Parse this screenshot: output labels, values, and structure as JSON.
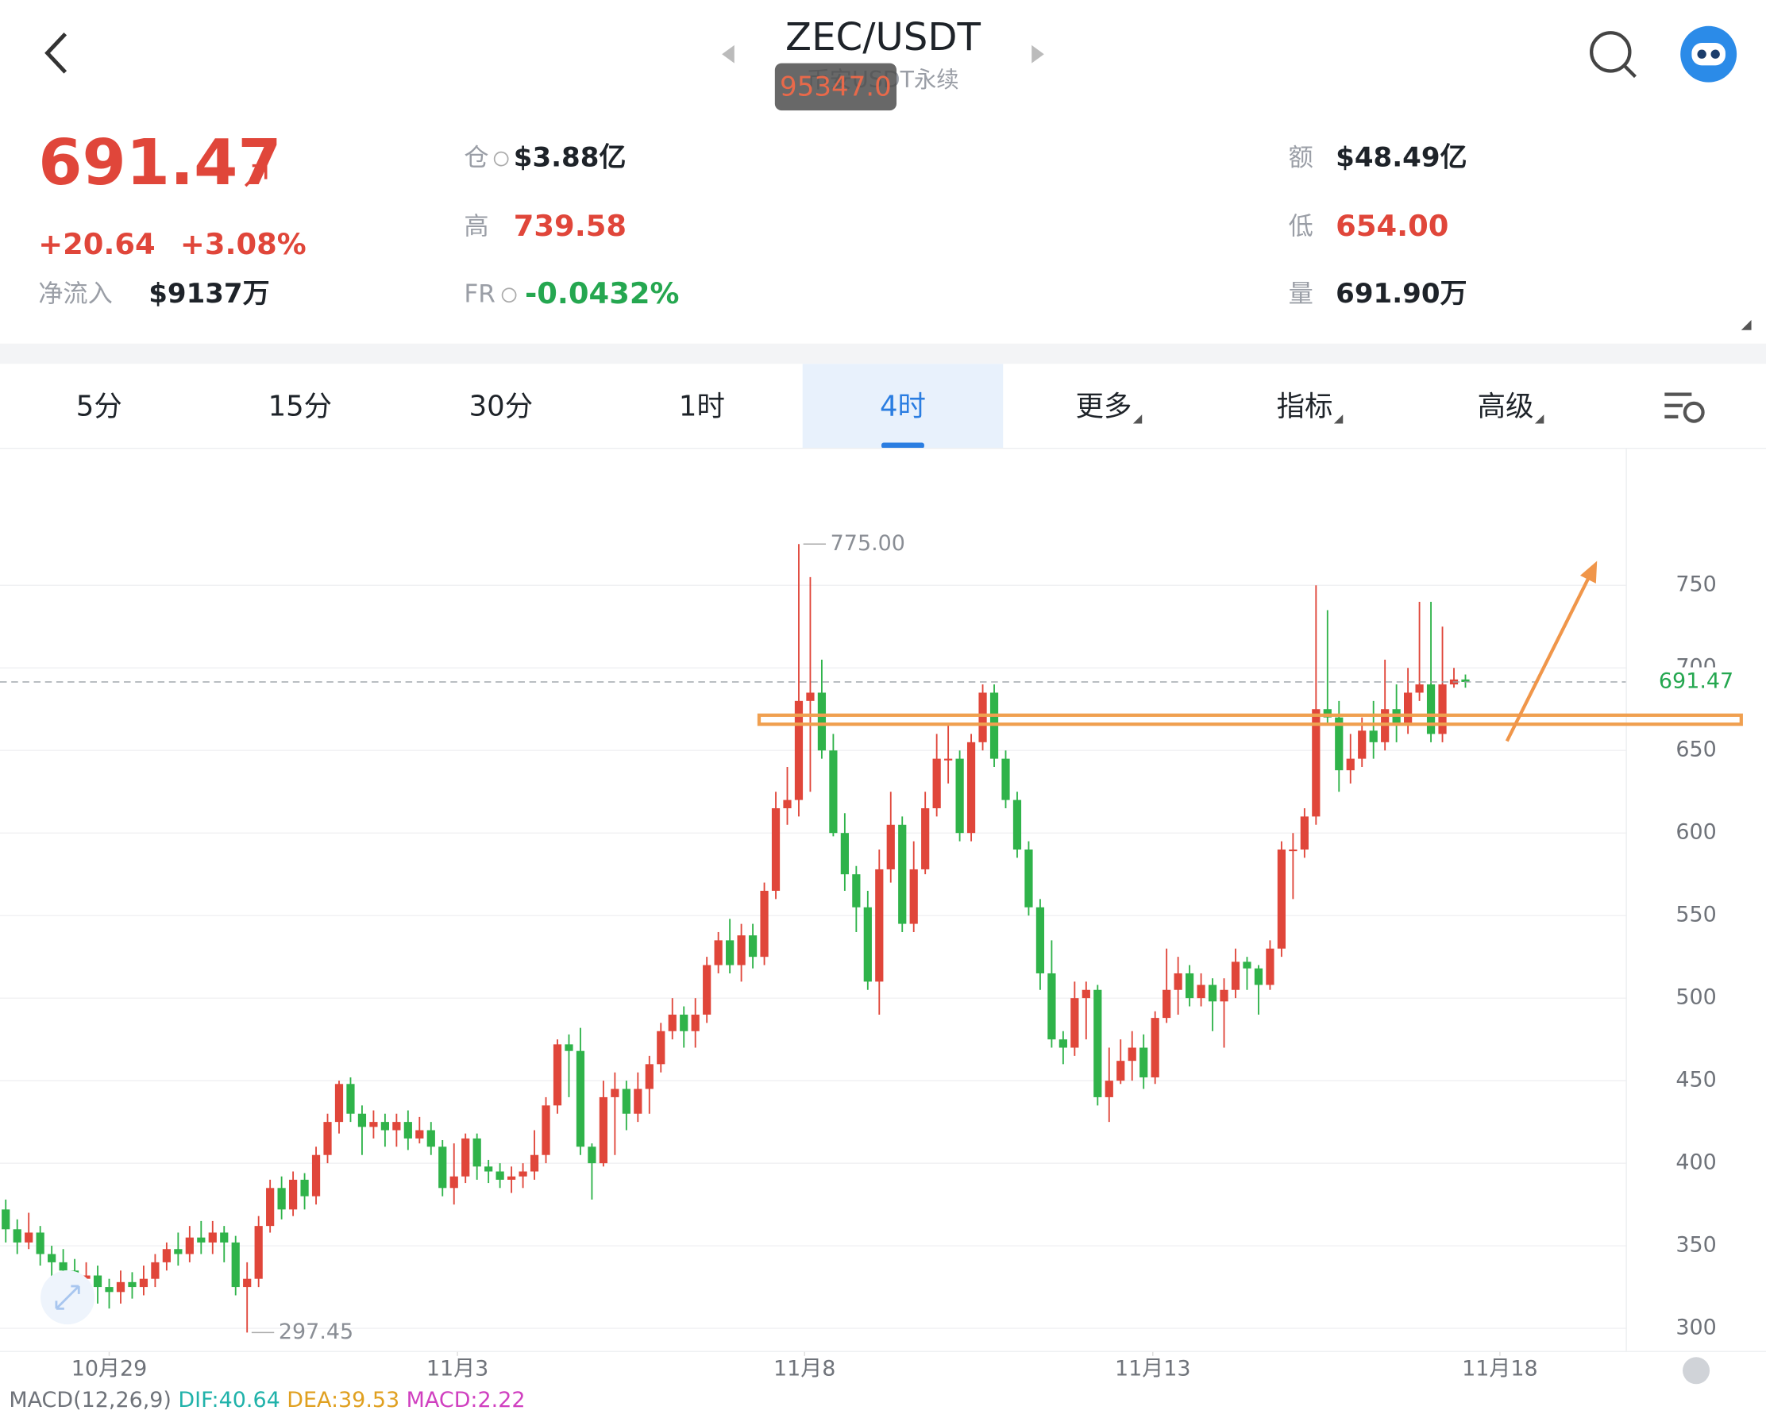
{
  "header": {
    "title": "ZEC/USDT",
    "subtitle": "币安USDT永续",
    "badge": "95347.0",
    "price": "691.47",
    "change": "+20.64",
    "change_pct": "+3.08%",
    "net_inflow_label": "净流入",
    "net_inflow": "$9137万"
  },
  "stats": [
    {
      "label": "仓",
      "value": "$3.88亿"
    },
    {
      "label": "高",
      "value": "739.58"
    },
    {
      "label": "FR",
      "value": "-0.0432%"
    },
    {
      "label": "额",
      "value": "$48.49亿"
    },
    {
      "label": "低",
      "value": "654.00"
    },
    {
      "label": "量",
      "value": "691.90万"
    }
  ],
  "tabs": [
    "5分",
    "15分",
    "30分",
    "1时",
    "4时",
    "更多",
    "指标",
    "高级"
  ],
  "selected_tab": "4时",
  "indicator": {
    "name": "MACD(12,26,9)",
    "dif": "DIF:40.64",
    "dea": "DEA:39.53",
    "macd": "MACD:2.22"
  },
  "chart_data": {
    "type": "candlestick",
    "up_color": "#e0463a",
    "down_color": "#2fb34a",
    "ylim": [
      286,
      833
    ],
    "yticks": [
      300,
      350,
      400,
      450,
      500,
      550,
      600,
      650,
      700,
      750
    ],
    "xlim": [
      -0.5,
      141
    ],
    "xticks": [
      {
        "value": 9,
        "label": "10月29"
      },
      {
        "value": 39.3,
        "label": "11月3"
      },
      {
        "value": 69.5,
        "label": "11月8"
      },
      {
        "value": 99.8,
        "label": "11月13"
      },
      {
        "value": 130,
        "label": "11月18"
      }
    ],
    "last_price": 691.47,
    "annotations": [
      {
        "value": 775,
        "label": "775.00"
      },
      {
        "value": 297.45,
        "label": "297.45"
      }
    ],
    "candles": [
      [
        372,
        378,
        352,
        360
      ],
      [
        360,
        366,
        345,
        352
      ],
      [
        352,
        370,
        348,
        358
      ],
      [
        358,
        362,
        338,
        345
      ],
      [
        345,
        350,
        330,
        340
      ],
      [
        340,
        348,
        325,
        335
      ],
      [
        335,
        342,
        322,
        330
      ],
      [
        330,
        340,
        318,
        332
      ],
      [
        332,
        338,
        315,
        325
      ],
      [
        325,
        330,
        312,
        322
      ],
      [
        322,
        335,
        315,
        328
      ],
      [
        328,
        334,
        318,
        325
      ],
      [
        325,
        338,
        320,
        330
      ],
      [
        330,
        345,
        325,
        340
      ],
      [
        340,
        352,
        335,
        348
      ],
      [
        348,
        358,
        338,
        345
      ],
      [
        345,
        362,
        340,
        355
      ],
      [
        355,
        365,
        345,
        352
      ],
      [
        352,
        365,
        345,
        358
      ],
      [
        358,
        362,
        340,
        352
      ],
      [
        352,
        356,
        320,
        325
      ],
      [
        325,
        340,
        297.45,
        330
      ],
      [
        330,
        368,
        325,
        362
      ],
      [
        362,
        390,
        358,
        385
      ],
      [
        385,
        392,
        366,
        372
      ],
      [
        372,
        395,
        368,
        390
      ],
      [
        390,
        394,
        372,
        380
      ],
      [
        380,
        410,
        375,
        405
      ],
      [
        405,
        430,
        400,
        425
      ],
      [
        425,
        450,
        418,
        448
      ],
      [
        448,
        452,
        425,
        430
      ],
      [
        430,
        435,
        405,
        422
      ],
      [
        422,
        432,
        415,
        425
      ],
      [
        425,
        430,
        410,
        420
      ],
      [
        420,
        430,
        410,
        425
      ],
      [
        425,
        432,
        408,
        415
      ],
      [
        415,
        428,
        412,
        420
      ],
      [
        420,
        425,
        405,
        410
      ],
      [
        410,
        414,
        380,
        385
      ],
      [
        385,
        412,
        375,
        392
      ],
      [
        392,
        418,
        388,
        415
      ],
      [
        415,
        418,
        390,
        398
      ],
      [
        398,
        402,
        388,
        395
      ],
      [
        395,
        400,
        385,
        390
      ],
      [
        390,
        398,
        382,
        392
      ],
      [
        392,
        400,
        385,
        395
      ],
      [
        395,
        420,
        390,
        405
      ],
      [
        405,
        440,
        400,
        435
      ],
      [
        435,
        475,
        430,
        472
      ],
      [
        472,
        478,
        440,
        468
      ],
      [
        468,
        482,
        405,
        410
      ],
      [
        410,
        412,
        378,
        400
      ],
      [
        400,
        450,
        398,
        440
      ],
      [
        440,
        455,
        405,
        445
      ],
      [
        445,
        450,
        420,
        430
      ],
      [
        430,
        455,
        425,
        445
      ],
      [
        445,
        465,
        430,
        460
      ],
      [
        460,
        485,
        455,
        480
      ],
      [
        480,
        500,
        475,
        490
      ],
      [
        490,
        495,
        470,
        480
      ],
      [
        480,
        500,
        470,
        490
      ],
      [
        490,
        525,
        485,
        520
      ],
      [
        520,
        540,
        515,
        535
      ],
      [
        535,
        548,
        515,
        520
      ],
      [
        520,
        545,
        510,
        538
      ],
      [
        538,
        545,
        518,
        525
      ],
      [
        525,
        570,
        520,
        565
      ],
      [
        565,
        625,
        560,
        615
      ],
      [
        615,
        640,
        605,
        620
      ],
      [
        620,
        775,
        610,
        680
      ],
      [
        680,
        755,
        625,
        685
      ],
      [
        685,
        705,
        645,
        650
      ],
      [
        650,
        660,
        598,
        600
      ],
      [
        600,
        612,
        565,
        575
      ],
      [
        575,
        580,
        540,
        555
      ],
      [
        555,
        565,
        505,
        510
      ],
      [
        510,
        590,
        490,
        578
      ],
      [
        578,
        625,
        570,
        605
      ],
      [
        605,
        610,
        540,
        545
      ],
      [
        545,
        595,
        540,
        578
      ],
      [
        578,
        625,
        575,
        615
      ],
      [
        615,
        660,
        610,
        645
      ],
      [
        645,
        665,
        630,
        645
      ],
      [
        645,
        650,
        595,
        600
      ],
      [
        600,
        660,
        595,
        655
      ],
      [
        655,
        690,
        650,
        685
      ],
      [
        685,
        690,
        640,
        645
      ],
      [
        645,
        650,
        615,
        620
      ],
      [
        620,
        625,
        585,
        590
      ],
      [
        590,
        595,
        550,
        555
      ],
      [
        555,
        560,
        505,
        515
      ],
      [
        515,
        535,
        470,
        475
      ],
      [
        475,
        480,
        460,
        470
      ],
      [
        470,
        510,
        465,
        500
      ],
      [
        500,
        510,
        475,
        505
      ],
      [
        505,
        508,
        435,
        440
      ],
      [
        440,
        470,
        425,
        450
      ],
      [
        450,
        475,
        448,
        462
      ],
      [
        462,
        480,
        450,
        470
      ],
      [
        470,
        478,
        445,
        452
      ],
      [
        452,
        492,
        448,
        488
      ],
      [
        488,
        530,
        485,
        505
      ],
      [
        505,
        525,
        490,
        515
      ],
      [
        515,
        520,
        495,
        500
      ],
      [
        500,
        515,
        495,
        508
      ],
      [
        508,
        512,
        480,
        498
      ],
      [
        498,
        512,
        470,
        505
      ],
      [
        505,
        530,
        500,
        522
      ],
      [
        522,
        525,
        505,
        518
      ],
      [
        518,
        520,
        490,
        508
      ],
      [
        508,
        535,
        505,
        530
      ],
      [
        530,
        595,
        525,
        590
      ],
      [
        590,
        600,
        560,
        590
      ],
      [
        590,
        615,
        585,
        610
      ],
      [
        610,
        750,
        605,
        675
      ],
      [
        675,
        735,
        665,
        670
      ],
      [
        670,
        680,
        625,
        638
      ],
      [
        638,
        660,
        630,
        645
      ],
      [
        645,
        670,
        640,
        662
      ],
      [
        662,
        680,
        645,
        655
      ],
      [
        655,
        705,
        650,
        675
      ],
      [
        675,
        690,
        655,
        665
      ],
      [
        665,
        700,
        660,
        685
      ],
      [
        685,
        740,
        680,
        690
      ],
      [
        690,
        740,
        655,
        660
      ],
      [
        660,
        725,
        655,
        690
      ],
      [
        690,
        700,
        688,
        693
      ],
      [
        693,
        696,
        688,
        691.47
      ]
    ]
  }
}
